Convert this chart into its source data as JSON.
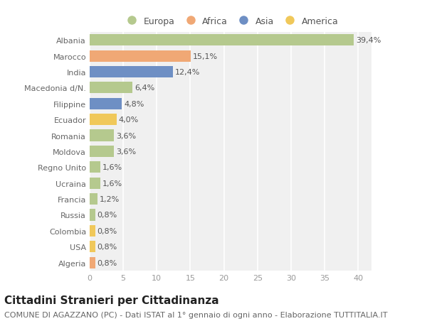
{
  "countries": [
    "Albania",
    "Marocco",
    "India",
    "Macedonia d/N.",
    "Filippine",
    "Ecuador",
    "Romania",
    "Moldova",
    "Regno Unito",
    "Ucraina",
    "Francia",
    "Russia",
    "Colombia",
    "USA",
    "Algeria"
  ],
  "values": [
    39.4,
    15.1,
    12.4,
    6.4,
    4.8,
    4.0,
    3.6,
    3.6,
    1.6,
    1.6,
    1.2,
    0.8,
    0.8,
    0.8,
    0.8
  ],
  "labels": [
    "39,4%",
    "15,1%",
    "12,4%",
    "6,4%",
    "4,8%",
    "4,0%",
    "3,6%",
    "3,6%",
    "1,6%",
    "1,6%",
    "1,2%",
    "0,8%",
    "0,8%",
    "0,8%",
    "0,8%"
  ],
  "colors": [
    "#b5c98e",
    "#f0a875",
    "#6e8fc4",
    "#b5c98e",
    "#6e8fc4",
    "#f0c85a",
    "#b5c98e",
    "#b5c98e",
    "#b5c98e",
    "#b5c98e",
    "#b5c98e",
    "#b5c98e",
    "#f0c85a",
    "#f0c85a",
    "#f0a875"
  ],
  "legend_labels": [
    "Europa",
    "Africa",
    "Asia",
    "America"
  ],
  "legend_colors": [
    "#b5c98e",
    "#f0a875",
    "#6e8fc4",
    "#f0c85a"
  ],
  "title": "Cittadini Stranieri per Cittadinanza",
  "subtitle": "COMUNE DI AGAZZANO (PC) - Dati ISTAT al 1° gennaio di ogni anno - Elaborazione TUTTITALIA.IT",
  "xlim": [
    0,
    42
  ],
  "xticks": [
    0,
    5,
    10,
    15,
    20,
    25,
    30,
    35,
    40
  ],
  "bg_color": "#ffffff",
  "plot_bg_color": "#f0f0f0",
  "grid_color": "#ffffff",
  "title_fontsize": 11,
  "subtitle_fontsize": 8,
  "label_fontsize": 8,
  "tick_fontsize": 8,
  "legend_fontsize": 9
}
